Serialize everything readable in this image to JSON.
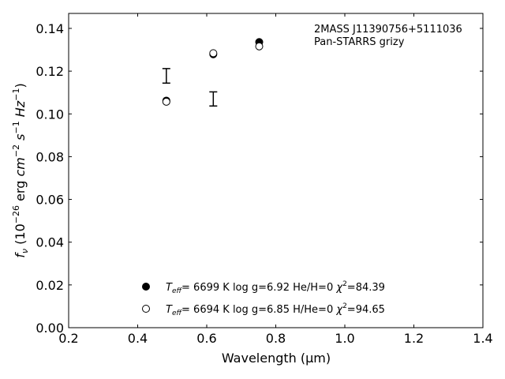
{
  "chart_data": {
    "type": "scatter",
    "xlabel": "Wavelength (μm)",
    "ylabel_parts": {
      "f": "f",
      "nu": "ν",
      "open": " (10",
      "exp26": "−26",
      "erg": " erg ",
      "cm": "cm",
      "exp2": "−2",
      "s": " s",
      "exp1": "−1",
      "hz": " Hz",
      "exp1b": "−1",
      "close": ")"
    },
    "xlim": [
      0.2,
      1.4
    ],
    "ylim": [
      0.0,
      0.147
    ],
    "xticks": [
      0.2,
      0.4,
      0.6,
      0.8,
      1.0,
      1.2,
      1.4
    ],
    "xtick_labels": [
      "0.2",
      "0.4",
      "0.6",
      "0.8",
      "1.0",
      "1.2",
      "1.4"
    ],
    "yticks": [
      0.0,
      0.02,
      0.04,
      0.06,
      0.08,
      0.1,
      0.12,
      0.14
    ],
    "ytick_labels": [
      "0.00",
      "0.02",
      "0.04",
      "0.06",
      "0.08",
      "0.10",
      "0.12",
      "0.14"
    ],
    "annotation": [
      "2MASS J11390756+5111036",
      "Pan-STARRS grizy"
    ],
    "errorbars": [
      {
        "x": 0.483,
        "y": 0.1178,
        "err": 0.0034
      },
      {
        "x": 0.619,
        "y": 0.107,
        "err": 0.0033
      }
    ],
    "series": [
      {
        "marker": "filled",
        "x": [
          0.483,
          0.619,
          0.752
        ],
        "y": [
          0.1062,
          0.1279,
          0.1336
        ],
        "legend": {
          "teff_value": "6699 K",
          "logg": "log g=6.92",
          "comp": "He/H=0",
          "chi": "84.39"
        }
      },
      {
        "marker": "open",
        "x": [
          0.483,
          0.619,
          0.752
        ],
        "y": [
          0.1057,
          0.1284,
          0.1316
        ],
        "legend": {
          "teff_value": "6694 K",
          "logg": "log g=6.85",
          "comp": "H/He=0",
          "chi": "94.65"
        }
      }
    ],
    "legend_parts": {
      "T": "T",
      "eff": "eff",
      "eq": "=",
      "chi_sym": "χ",
      "chi_exp": "2",
      "chi_eq": "="
    }
  }
}
